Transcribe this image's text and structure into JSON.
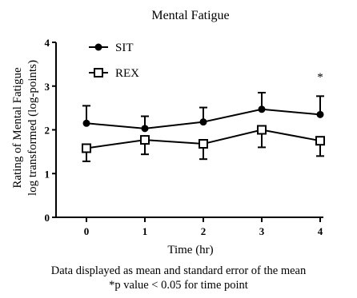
{
  "chart_data": {
    "type": "line",
    "title": "Mental Fatigue",
    "xlabel": "Time (hr)",
    "ylabel_lines": [
      "Rating of Mental Fatigue",
      "log transformed (log-points)"
    ],
    "x": [
      0,
      1,
      2,
      3,
      4
    ],
    "xlim": [
      0,
      4
    ],
    "ylim": [
      0,
      4
    ],
    "yticks": [
      0,
      1,
      2,
      3,
      4
    ],
    "grid": false,
    "legend_position": "top-left",
    "series": [
      {
        "name": "SIT",
        "marker": "filled-circle",
        "color": "#000000",
        "values": [
          2.15,
          2.03,
          2.18,
          2.47,
          2.35
        ],
        "error": [
          0.4,
          0.28,
          0.33,
          0.38,
          0.42
        ],
        "error_direction": "up"
      },
      {
        "name": "REX",
        "marker": "open-square",
        "color": "#000000",
        "values": [
          1.58,
          1.77,
          1.68,
          2.0,
          1.75
        ],
        "error": [
          0.3,
          0.33,
          0.35,
          0.4,
          0.35
        ],
        "error_direction": "down"
      }
    ],
    "annotations": [
      {
        "text": "*",
        "x": 4
      }
    ]
  },
  "footnotes": [
    "Data displayed as mean and standard error of the mean",
    "*p value < 0.05 for time point"
  ]
}
